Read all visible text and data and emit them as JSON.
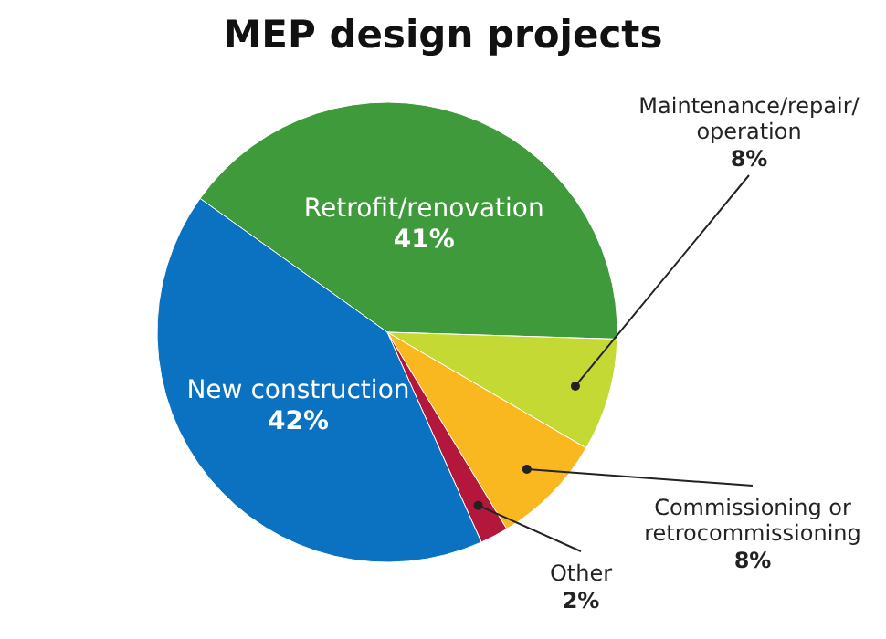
{
  "chart_data": {
    "type": "pie",
    "title": "MEP design projects",
    "categories": [
      "Retrofit/renovation",
      "Maintenance/repair/operation",
      "Commissioning or retrocommissioning",
      "Other",
      "New construction"
    ],
    "values": [
      41,
      8,
      8,
      2,
      42
    ],
    "colors": [
      "#3f9a3c",
      "#c5d935",
      "#f9b81f",
      "#b3173c",
      "#0b72c2"
    ],
    "value_labels": [
      "41%",
      "8%",
      "8%",
      "2%",
      "42%"
    ]
  }
}
